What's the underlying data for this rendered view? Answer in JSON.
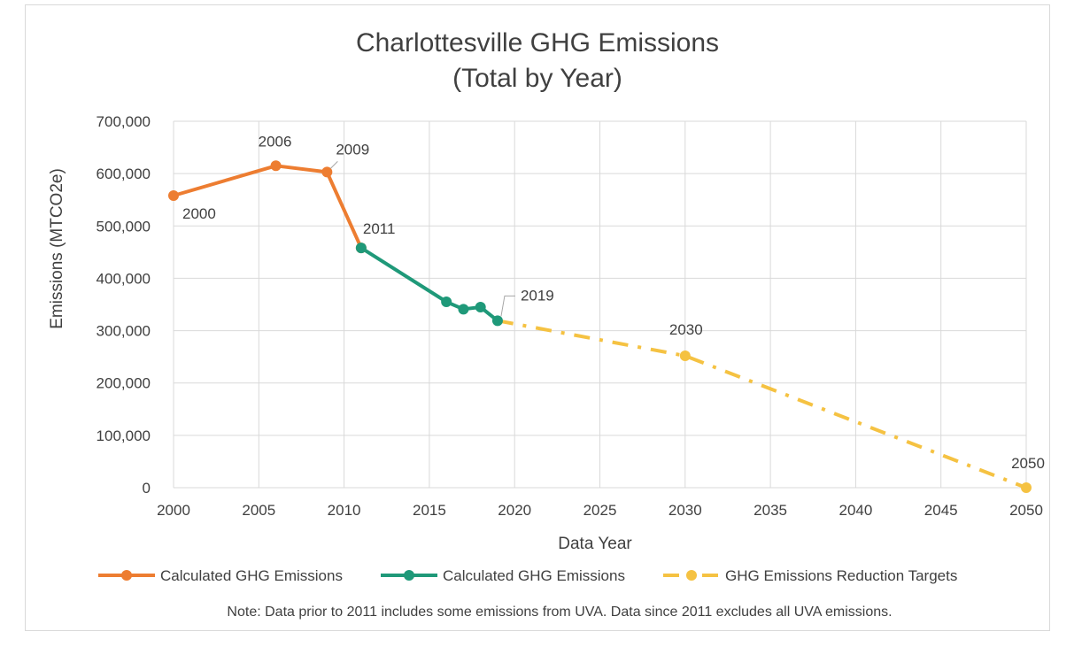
{
  "chart_data": {
    "type": "line",
    "title": "Charlottesville GHG Emissions",
    "subtitle": "(Total by Year)",
    "xlabel": "Data Year",
    "ylabel": "Emissions  (MTCO2e)",
    "xlim": [
      2000,
      2050
    ],
    "ylim": [
      0,
      700000
    ],
    "x_ticks": [
      2000,
      2005,
      2010,
      2015,
      2020,
      2025,
      2030,
      2035,
      2040,
      2045,
      2050
    ],
    "x_tick_labels": [
      "2000",
      "2005",
      "2010",
      "2015",
      "2020",
      "2025",
      "2030",
      "2035",
      "2040",
      "2045",
      "2050"
    ],
    "y_ticks": [
      0,
      100000,
      200000,
      300000,
      400000,
      500000,
      600000,
      700000
    ],
    "y_tick_labels": [
      "0",
      "100,000",
      "200,000",
      "300,000",
      "400,000",
      "500,000",
      "600,000",
      "700,000"
    ],
    "grid": true,
    "legend_position": "bottom",
    "series": [
      {
        "name": "Calculated GHG Emissions",
        "color": "#ED7D31",
        "style": "solid",
        "x": [
          2000,
          2006,
          2009,
          2011
        ],
        "y": [
          558000,
          615000,
          603000,
          458000
        ]
      },
      {
        "name": "Calculated GHG Emissions",
        "color": "#1F9979",
        "style": "solid",
        "x": [
          2011,
          2016,
          2017,
          2018,
          2019
        ],
        "y": [
          458000,
          355000,
          341000,
          345000,
          319000
        ]
      },
      {
        "name": "GHG Emissions Reduction Targets",
        "color": "#F5C242",
        "style": "dash-dot",
        "x": [
          2019,
          2030,
          2050
        ],
        "y": [
          319000,
          252000,
          0
        ],
        "marker_x": [
          2030,
          2050
        ],
        "marker_y": [
          252000,
          0
        ]
      }
    ],
    "data_labels": [
      {
        "text": "2000",
        "x": 2000,
        "y": 558000
      },
      {
        "text": "2006",
        "x": 2006,
        "y": 615000
      },
      {
        "text": "2009",
        "x": 2009,
        "y": 603000
      },
      {
        "text": "2011",
        "x": 2011,
        "y": 458000
      },
      {
        "text": "2019",
        "x": 2019,
        "y": 319000
      },
      {
        "text": "2030",
        "x": 2030,
        "y": 252000
      },
      {
        "text": "2050",
        "x": 2050,
        "y": 0
      }
    ],
    "note": "Note:  Data prior to 2011 includes some emissions from UVA. Data since 2011 excludes all UVA emissions."
  }
}
